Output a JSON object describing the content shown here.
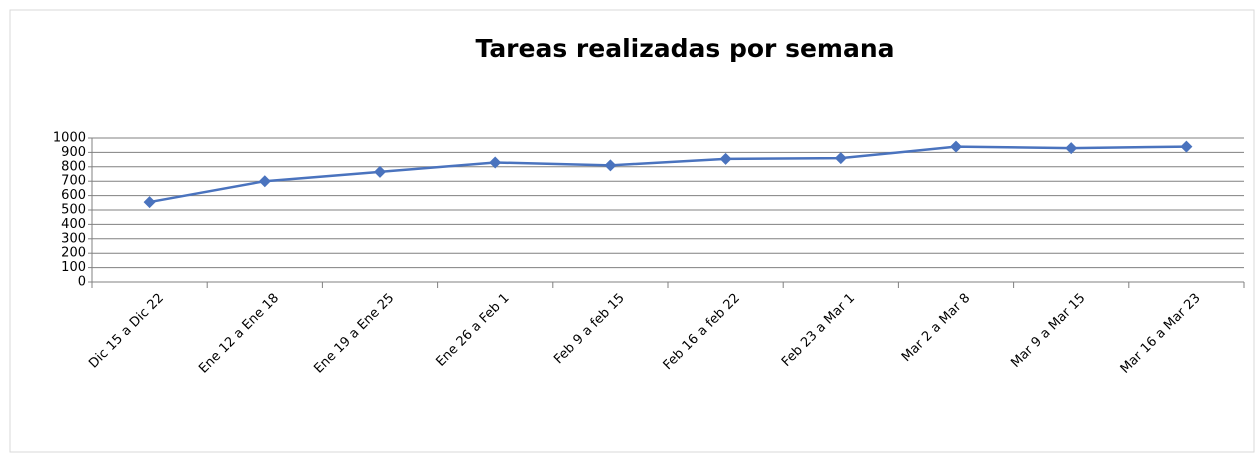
{
  "chart_data": {
    "type": "line",
    "title": "Tareas realizadas por semana",
    "categories": [
      "Dic 15 a Dic 22",
      "Ene 12 a Ene 18",
      "Ene 19 a Ene 25",
      "Ene 26 a Feb 1",
      "Feb 9 a  feb 15",
      "Feb 16 a feb 22",
      "Feb 23 a Mar 1",
      "Mar 2 a Mar 8",
      "Mar 9 a Mar 15",
      "Mar 16 a Mar 23"
    ],
    "values": [
      555,
      700,
      765,
      830,
      810,
      855,
      860,
      940,
      930,
      940
    ],
    "color": "#4a73be",
    "ylim": [
      0,
      1000
    ],
    "yticks": [
      0,
      100,
      200,
      300,
      400,
      500,
      600,
      700,
      800,
      900,
      1000
    ],
    "grid": true
  }
}
